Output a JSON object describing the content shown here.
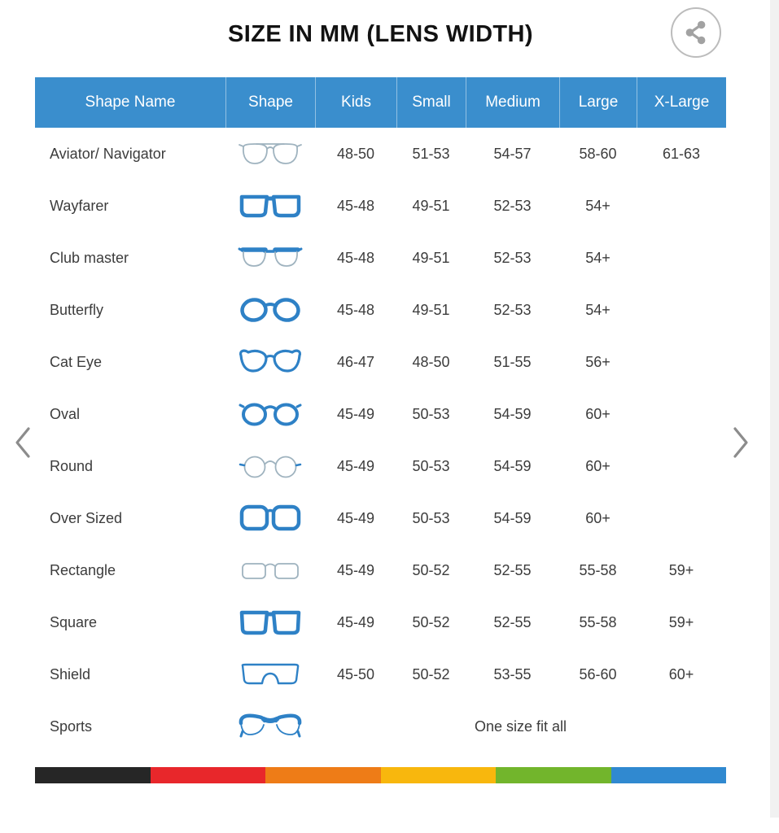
{
  "title": "SIZE IN MM (LENS WIDTH)",
  "share_button": {
    "icon": "share-icon"
  },
  "carousel": {
    "prev_icon": "chevron-left-icon",
    "next_icon": "chevron-right-icon"
  },
  "table": {
    "headers": [
      "Shape Name",
      "Shape",
      "Kids",
      "Small",
      "Medium",
      "Large",
      "X-Large"
    ],
    "rows": [
      {
        "shape_name": "Aviator/ Navigator",
        "shape_icon": "aviator-glasses-icon",
        "kids": "48-50",
        "small": "51-53",
        "medium": "54-57",
        "large": "58-60",
        "x_large": "61-63"
      },
      {
        "shape_name": "Wayfarer",
        "shape_icon": "wayfarer-glasses-icon",
        "kids": "45-48",
        "small": "49-51",
        "medium": "52-53",
        "large": "54+",
        "x_large": ""
      },
      {
        "shape_name": "Club master",
        "shape_icon": "clubmaster-glasses-icon",
        "kids": "45-48",
        "small": "49-51",
        "medium": "52-53",
        "large": "54+",
        "x_large": ""
      },
      {
        "shape_name": "Butterfly",
        "shape_icon": "butterfly-glasses-icon",
        "kids": "45-48",
        "small": "49-51",
        "medium": "52-53",
        "large": "54+",
        "x_large": ""
      },
      {
        "shape_name": "Cat Eye",
        "shape_icon": "cateye-glasses-icon",
        "kids": "46-47",
        "small": "48-50",
        "medium": "51-55",
        "large": "56+",
        "x_large": ""
      },
      {
        "shape_name": "Oval",
        "shape_icon": "oval-glasses-icon",
        "kids": "45-49",
        "small": "50-53",
        "medium": "54-59",
        "large": "60+",
        "x_large": ""
      },
      {
        "shape_name": "Round",
        "shape_icon": "round-glasses-icon",
        "kids": "45-49",
        "small": "50-53",
        "medium": "54-59",
        "large": "60+",
        "x_large": ""
      },
      {
        "shape_name": "Over Sized",
        "shape_icon": "oversized-glasses-icon",
        "kids": "45-49",
        "small": "50-53",
        "medium": "54-59",
        "large": "60+",
        "x_large": ""
      },
      {
        "shape_name": "Rectangle",
        "shape_icon": "rectangle-glasses-icon",
        "kids": "45-49",
        "small": "50-52",
        "medium": "52-55",
        "large": "55-58",
        "x_large": "59+"
      },
      {
        "shape_name": "Square",
        "shape_icon": "square-glasses-icon",
        "kids": "45-49",
        "small": "50-52",
        "medium": "52-55",
        "large": "55-58",
        "x_large": "59+"
      },
      {
        "shape_name": "Shield",
        "shape_icon": "shield-glasses-icon",
        "kids": "45-50",
        "small": "50-52",
        "medium": "53-55",
        "large": "56-60",
        "x_large": "60+"
      },
      {
        "shape_name": "Sports",
        "shape_icon": "sports-glasses-icon",
        "one_size_text": "One size fit all"
      }
    ]
  },
  "footer_stripe_colors": [
    "#262626",
    "#e8272b",
    "#ee7c17",
    "#f8b70d",
    "#72b52c",
    "#3089d0"
  ],
  "colors": {
    "header_bg": "#3a8ecd",
    "header_text": "#ffffff",
    "title_text": "#121212",
    "body_text": "#3c3c3c",
    "glasses_blue": "#2e81c6",
    "glasses_light": "#9fb3bf",
    "chevron_gray": "#8c8c8c",
    "share_gray": "#a2a2a2"
  }
}
